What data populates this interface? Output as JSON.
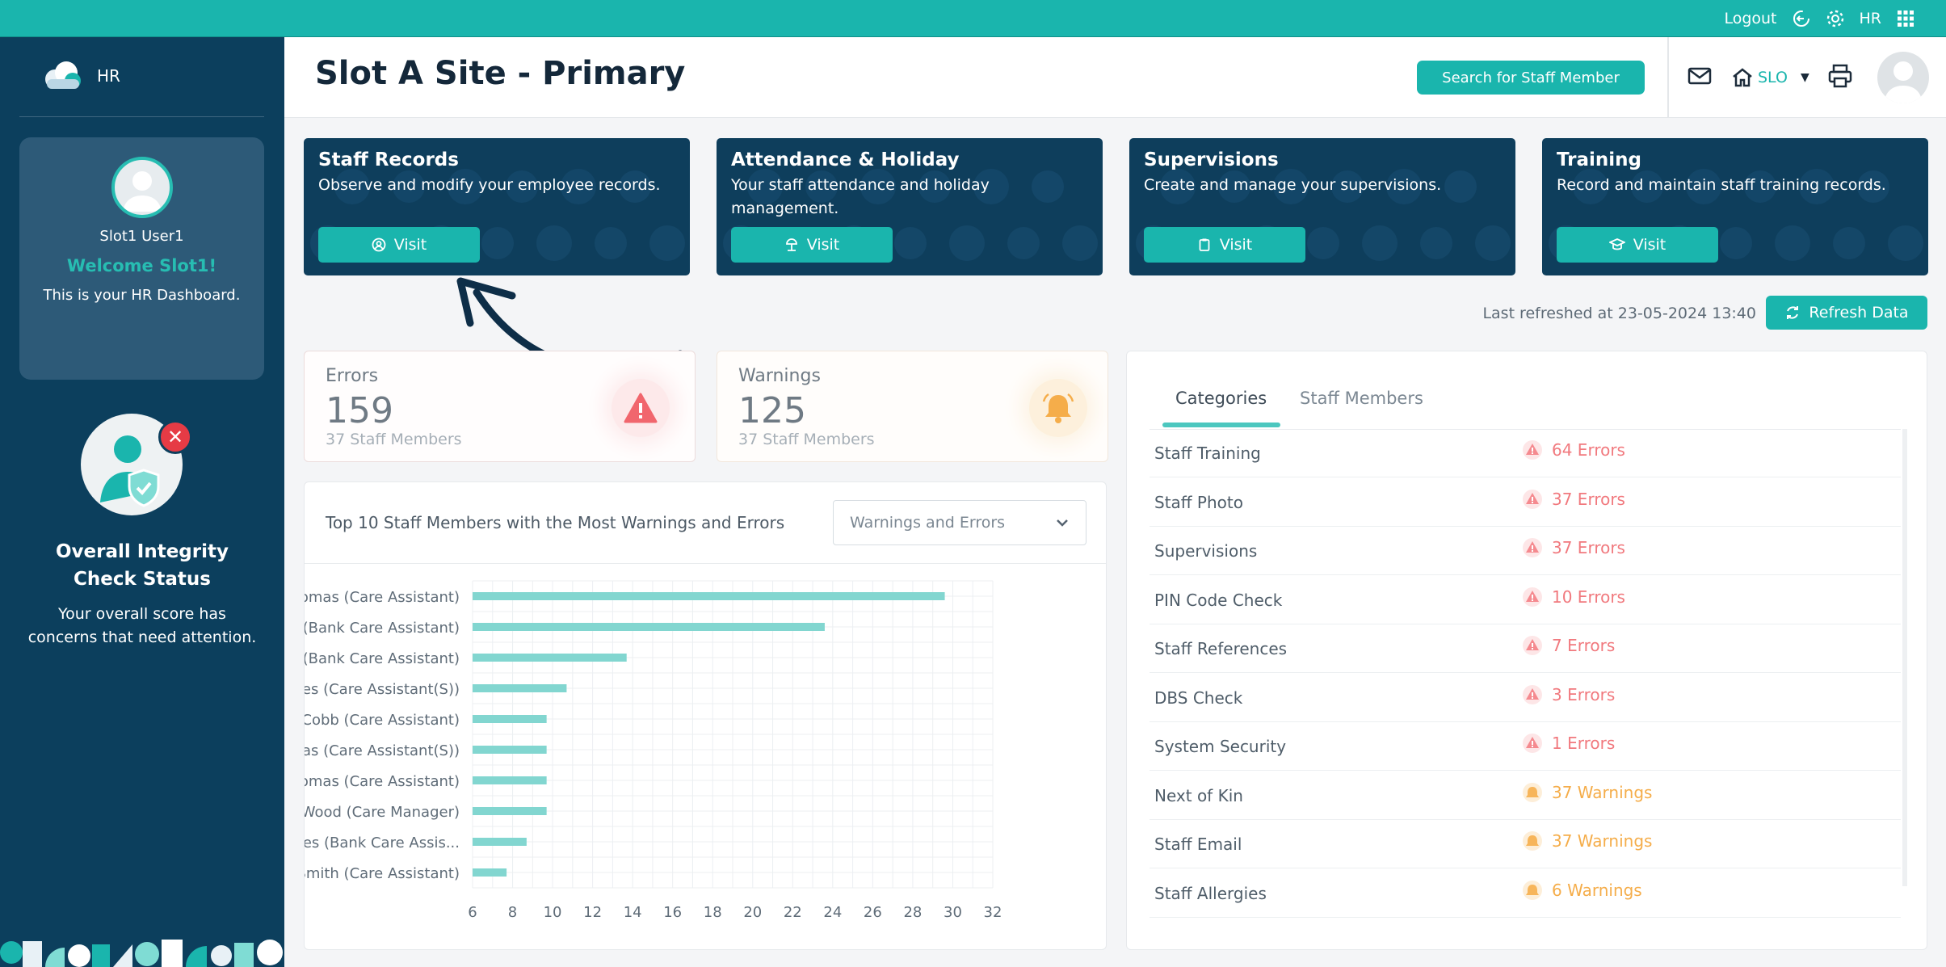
{
  "topbar": {
    "logout": "Logout",
    "user_code": "HR"
  },
  "sidebar": {
    "brand": "HR",
    "user_name": "Slot1 User1",
    "welcome": "Welcome Slot1!",
    "subtitle": "This is your HR Dashboard.",
    "integrity_title_1": "Overall Integrity",
    "integrity_title_2": "Check Status",
    "integrity_text_1": "Your overall score has",
    "integrity_text_2": "concerns that need attention."
  },
  "header": {
    "title": "Slot A Site - Primary",
    "search_button": "Search for Staff Member",
    "site_code": "SLO"
  },
  "cards": [
    {
      "title": "Staff Records",
      "desc": "Observe and modify your employee records.",
      "button": "Visit"
    },
    {
      "title": "Attendance & Holiday",
      "desc": "Your staff attendance and holiday management.",
      "button": "Visit"
    },
    {
      "title": "Supervisions",
      "desc": "Create and manage your supervisions.",
      "button": "Visit"
    },
    {
      "title": "Training",
      "desc": "Record and maintain staff training records.",
      "button": "Visit"
    }
  ],
  "refresh": {
    "last_refreshed": "Last refreshed at 23-05-2024 13:40",
    "button": "Refresh Data"
  },
  "stats": {
    "errors": {
      "label": "Errors",
      "value": "159",
      "sub": "37 Staff Members"
    },
    "warnings": {
      "label": "Warnings",
      "value": "125",
      "sub": "37 Staff Members"
    }
  },
  "chart_panel": {
    "title": "Top 10 Staff Members with the Most Warnings and Errors",
    "select_value": "Warnings and Errors"
  },
  "chart_data": {
    "type": "bar",
    "orientation": "horizontal",
    "categories": [
      "V Thomas (Care Assistant)",
      "E Smith (Bank Care Assistant)",
      "J James (Bank Care Assistant)",
      "S Jones (Care Assistant(S))",
      "R Cobb (Care Assistant)",
      "R Thomas (Care Assistant(S))",
      "C Thomas (Care Assistant)",
      "B Wood (Care Manager)",
      "S Hughes (Bank Care Assis...",
      "C Smith (Care Assistant)"
    ],
    "values": [
      29.6,
      23.6,
      13.7,
      10.7,
      9.7,
      9.7,
      9.7,
      9.7,
      8.7,
      7.7
    ],
    "xlim": [
      6,
      32
    ],
    "xticks": [
      6,
      8,
      10,
      12,
      14,
      16,
      18,
      20,
      22,
      24,
      26,
      28,
      30,
      32
    ],
    "grid": true,
    "bar_color": "#82d6d0"
  },
  "categories_panel": {
    "tabs": [
      "Categories",
      "Staff Members"
    ],
    "rows": [
      {
        "name": "Staff Training",
        "count": "64 Errors",
        "kind": "error"
      },
      {
        "name": "Staff Photo",
        "count": "37 Errors",
        "kind": "error"
      },
      {
        "name": "Supervisions",
        "count": "37 Errors",
        "kind": "error"
      },
      {
        "name": "PIN Code Check",
        "count": "10 Errors",
        "kind": "error"
      },
      {
        "name": "Staff References",
        "count": "7 Errors",
        "kind": "error"
      },
      {
        "name": "DBS Check",
        "count": "3 Errors",
        "kind": "error"
      },
      {
        "name": "System Security",
        "count": "1 Errors",
        "kind": "error"
      },
      {
        "name": "Next of Kin",
        "count": "37 Warnings",
        "kind": "warning"
      },
      {
        "name": "Staff Email",
        "count": "37 Warnings",
        "kind": "warning"
      },
      {
        "name": "Staff Allergies",
        "count": "6 Warnings",
        "kind": "warning"
      }
    ]
  },
  "colors": {
    "teal": "#1ab5ad",
    "navy": "#0c3f5d",
    "error": "#f1797e",
    "warning": "#f5ad4a"
  },
  "icons": {
    "topbar": [
      "logout-icon",
      "gear-icon",
      "grid-icon"
    ],
    "header": [
      "mail-icon",
      "home-icon",
      "printer-icon",
      "avatar"
    ],
    "cards": [
      "user-circle-icon",
      "beach-icon",
      "clipboard-icon",
      "graduation-cap-icon"
    ]
  }
}
